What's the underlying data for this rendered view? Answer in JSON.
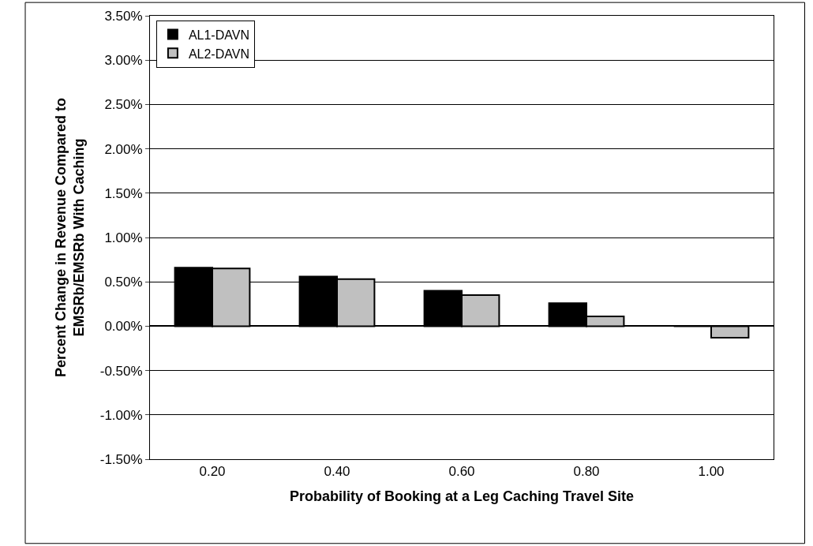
{
  "chart_data": {
    "type": "bar",
    "xlabel": "Probability of Booking at a Leg Caching Travel Site",
    "ylabel": "Percent Change in Revenue Compared to\nEMSRb/EMSRb With Caching",
    "categories": [
      "0.20",
      "0.40",
      "0.60",
      "0.80",
      "1.00"
    ],
    "series": [
      {
        "name": "AL1-DAVN",
        "color": "#000000",
        "values": [
          0.66,
          0.56,
          0.4,
          0.26,
          0
        ]
      },
      {
        "name": "AL2-DAVN",
        "color": "#c0c0c0",
        "values": [
          0.65,
          0.53,
          0.35,
          0.11,
          -0.13
        ]
      }
    ],
    "ylim": [
      -1.5,
      3.5
    ],
    "yticks": [
      {
        "value": -1.5,
        "label": "-1.50%"
      },
      {
        "value": -1.0,
        "label": "-1.00%"
      },
      {
        "value": -0.5,
        "label": "-0.50%"
      },
      {
        "value": 0,
        "label": "0.00%"
      },
      {
        "value": 0.5,
        "label": "0.50%"
      },
      {
        "value": 1.0,
        "label": "1.00%"
      },
      {
        "value": 1.5,
        "label": "1.50%"
      },
      {
        "value": 2.0,
        "label": "2.00%"
      },
      {
        "value": 2.5,
        "label": "2.50%"
      },
      {
        "value": 3.0,
        "label": "3.00%"
      },
      {
        "value": 3.5,
        "label": "3.50%"
      }
    ],
    "grid": "y",
    "legend": "top left"
  }
}
